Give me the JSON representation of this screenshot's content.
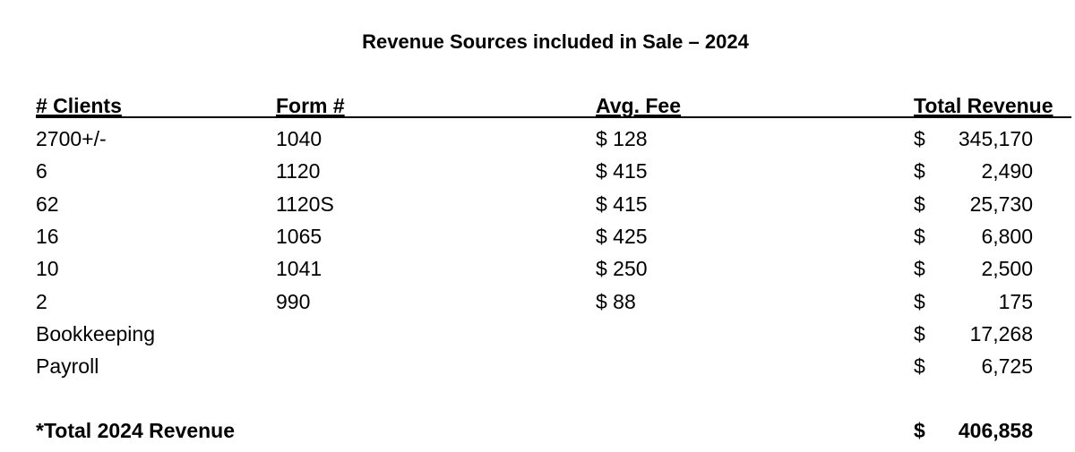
{
  "title": "Revenue Sources included in Sale – 2024",
  "table": {
    "header": [
      "# Clients",
      "Form #",
      "Avg. Fee",
      "Total Revenue"
    ],
    "rows": [
      {
        "clients": "2700+/-",
        "form": "1040",
        "avg_fee": "$ 128",
        "dollar": "$",
        "total": "345,170"
      },
      {
        "clients": "6",
        "form": "1120",
        "avg_fee": "$ 415",
        "dollar": "$",
        "total": "2,490"
      },
      {
        "clients": "62",
        "form": "1120S",
        "avg_fee": "$ 415",
        "dollar": "$",
        "total": "25,730"
      },
      {
        "clients": "16",
        "form": "1065",
        "avg_fee": "$ 425",
        "dollar": "$",
        "total": "6,800"
      },
      {
        "clients": "10",
        "form": "1041",
        "avg_fee": "$ 250",
        "dollar": "$",
        "total": "2,500"
      },
      {
        "clients": "2",
        "form": "990",
        "avg_fee": "$ 88",
        "dollar": "$",
        "total": "175"
      },
      {
        "clients": "Bookkeeping",
        "dollar": "$",
        "total": "17,268"
      },
      {
        "clients": "Payroll",
        "dollar": "$",
        "total": "6,725"
      }
    ],
    "total_row": {
      "label": "*Total 2024 Revenue",
      "dollar": "$",
      "total": "406,858"
    }
  }
}
